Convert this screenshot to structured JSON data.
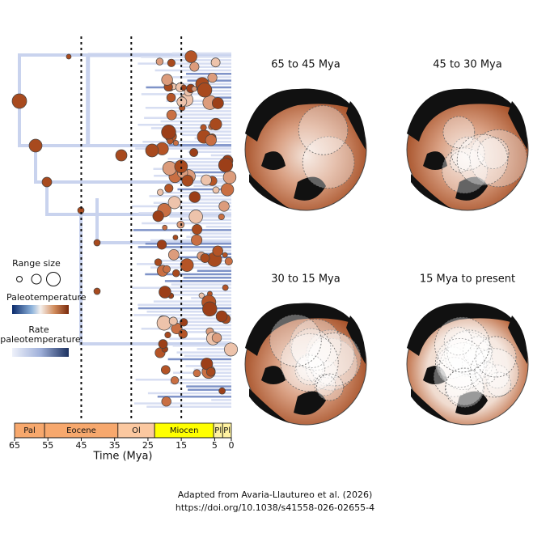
{
  "tree": {
    "legend": {
      "range_size": "Range size",
      "paleotemperature": "Paleotemperature",
      "rate": "Rate",
      "rate_sub": "paleotemperature"
    },
    "epochs": [
      {
        "label": "Pal",
        "start": 65,
        "end": 56
      },
      {
        "label": "Eocene",
        "start": 56,
        "end": 34
      },
      {
        "label": "Ol",
        "start": 34,
        "end": 23
      },
      {
        "label": "Miocen",
        "start": 23,
        "end": 5.3
      },
      {
        "label": "Pl",
        "start": 5.3,
        "end": 2.6
      },
      {
        "label": "Pl",
        "start": 2.6,
        "end": 0
      }
    ],
    "xlim": [
      65,
      0
    ],
    "xticks": [
      65,
      55,
      45,
      35,
      25,
      15,
      5,
      0
    ],
    "dividers": [
      45,
      30,
      15
    ],
    "xlabel": "Time (Mya)"
  },
  "maps": [
    {
      "title": "65 to 45 Mya"
    },
    {
      "title": "45 to 30 Mya"
    },
    {
      "title": "30 to 15 Mya"
    },
    {
      "title": "15 Mya to present"
    }
  ],
  "caption": {
    "line1": "Adapted from Avaria-Llautureo et al. (2026)",
    "line2": "https://doi.org/10.1038/s41558-026-02655-4"
  }
}
